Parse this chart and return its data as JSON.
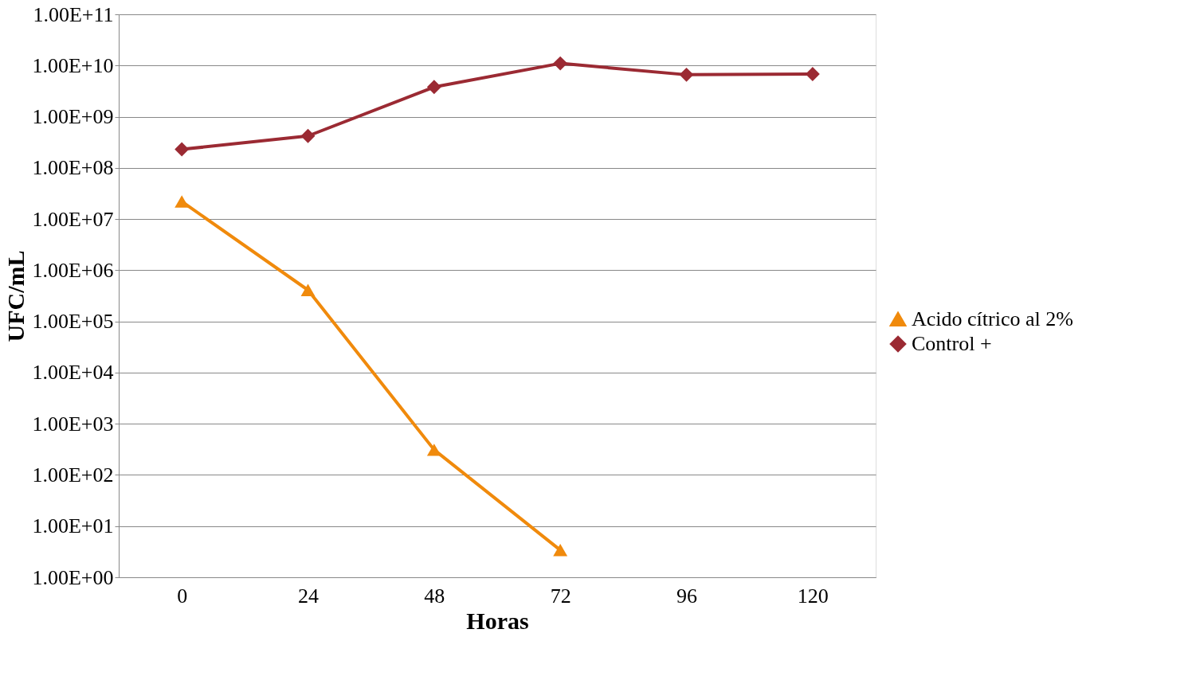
{
  "chart_data": {
    "type": "line",
    "xlabel": "Horas",
    "ylabel": "UFC/mL",
    "categories": [
      "0",
      "24",
      "48",
      "72",
      "96",
      "120"
    ],
    "series": [
      {
        "name": "Acido cítrico al 2%",
        "color": "#f08a0c",
        "marker": "triangle",
        "values": [
          22000000.0,
          410000.0,
          310,
          3.4,
          null,
          null
        ]
      },
      {
        "name": "Control +",
        "color": "#9b2a33",
        "marker": "diamond",
        "values": [
          230000000.0,
          420000000.0,
          3800000000.0,
          11000000000.0,
          6600000000.0,
          6800000000.0
        ]
      }
    ],
    "log": "y",
    "ylim": [
      1,
      100000000000.0
    ],
    "yticks": [
      {
        "value": 1,
        "label": "1.00E+00"
      },
      {
        "value": 10,
        "label": "1.00E+01"
      },
      {
        "value": 100,
        "label": "1.00E+02"
      },
      {
        "value": 1000,
        "label": "1.00E+03"
      },
      {
        "value": 10000,
        "label": "1.00E+04"
      },
      {
        "value": 100000,
        "label": "1.00E+05"
      },
      {
        "value": 1000000,
        "label": "1.00E+06"
      },
      {
        "value": 10000000,
        "label": "1.00E+07"
      },
      {
        "value": 100000000,
        "label": "1.00E+08"
      },
      {
        "value": 1000000000,
        "label": "1.00E+09"
      },
      {
        "value": 10000000000,
        "label": "1.00E+10"
      },
      {
        "value": 100000000000,
        "label": "1.00E+11"
      }
    ],
    "grid": "y",
    "legend": "right",
    "line_style": "solid"
  }
}
